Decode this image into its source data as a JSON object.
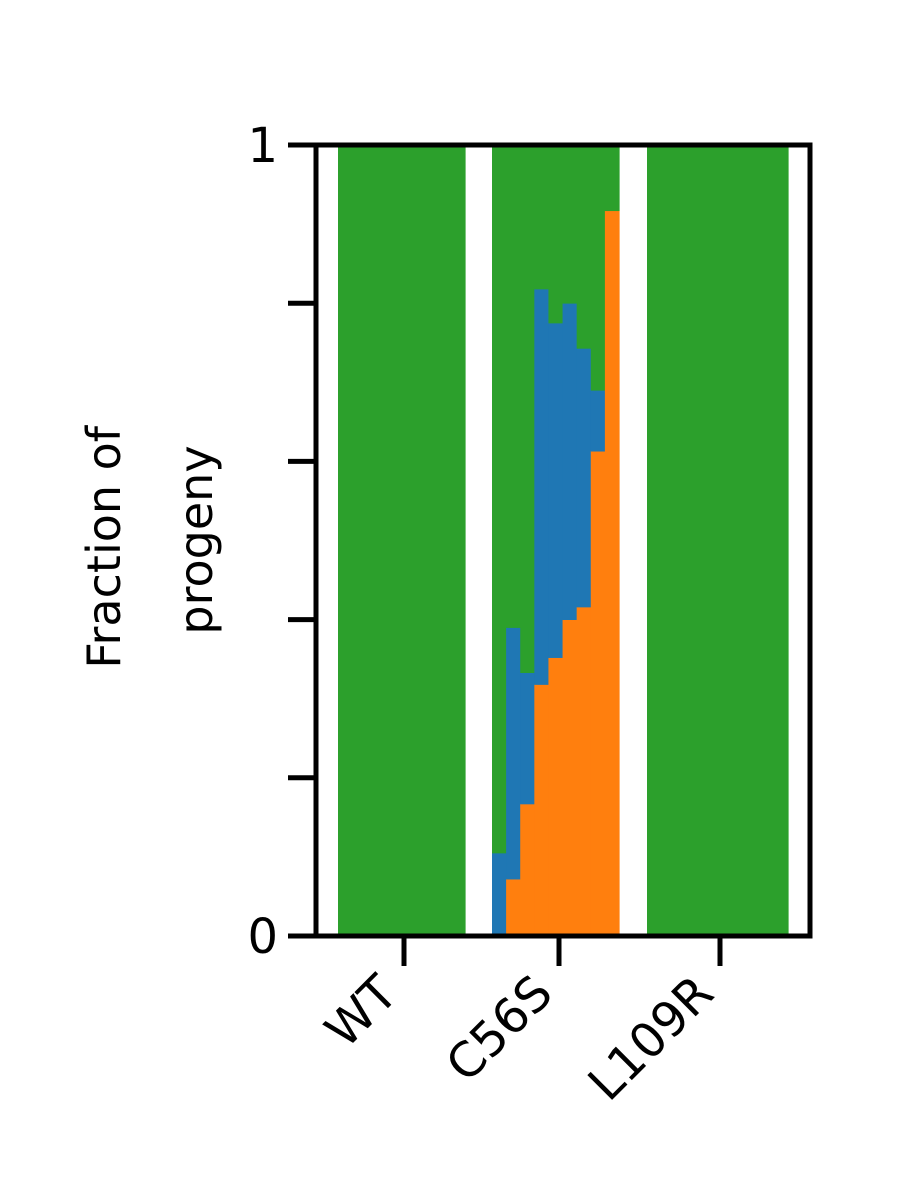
{
  "chart_data": {
    "type": "bar",
    "stacked": true,
    "ylabel": [
      "Fraction of",
      "progeny"
    ],
    "ylim": [
      0,
      1
    ],
    "yticks": [
      0,
      0.2,
      0.4,
      0.6,
      0.8,
      1
    ],
    "ytick_labels": {
      "0": "0",
      "1": "1"
    },
    "groups": [
      {
        "name": "WT",
        "bars": [
          {
            "orange": 0,
            "blue": 0,
            "green": 1
          },
          {
            "orange": 0,
            "blue": 0,
            "green": 1
          },
          {
            "orange": 0,
            "blue": 0,
            "green": 1
          },
          {
            "orange": 0,
            "blue": 0,
            "green": 1
          },
          {
            "orange": 0,
            "blue": 0,
            "green": 1
          },
          {
            "orange": 0,
            "blue": 0,
            "green": 1
          },
          {
            "orange": 0,
            "blue": 0,
            "green": 1
          },
          {
            "orange": 0,
            "blue": 0,
            "green": 1
          },
          {
            "orange": 0,
            "blue": 0,
            "green": 1
          }
        ]
      },
      {
        "name": "C56S",
        "bars": [
          {
            "orange": 0.0,
            "blue": 0.105,
            "green": 0.895
          },
          {
            "orange": 0.072,
            "blue": 0.318,
            "green": 0.61
          },
          {
            "orange": 0.167,
            "blue": 0.166,
            "green": 0.667
          },
          {
            "orange": 0.318,
            "blue": 0.5,
            "green": 0.182
          },
          {
            "orange": 0.352,
            "blue": 0.423,
            "green": 0.225
          },
          {
            "orange": 0.4,
            "blue": 0.4,
            "green": 0.2
          },
          {
            "orange": 0.416,
            "blue": 0.327,
            "green": 0.257
          },
          {
            "orange": 0.613,
            "blue": 0.077,
            "green": 0.31
          },
          {
            "orange": 0.917,
            "blue": 0.0,
            "green": 0.083
          }
        ]
      },
      {
        "name": "L109R",
        "bars": [
          {
            "orange": 0,
            "blue": 0,
            "green": 1
          },
          {
            "orange": 0,
            "blue": 0,
            "green": 1
          },
          {
            "orange": 0,
            "blue": 0,
            "green": 1
          },
          {
            "orange": 0,
            "blue": 0,
            "green": 1
          },
          {
            "orange": 0,
            "blue": 0,
            "green": 1
          },
          {
            "orange": 0,
            "blue": 0,
            "green": 1
          },
          {
            "orange": 0,
            "blue": 0,
            "green": 1
          },
          {
            "orange": 0,
            "blue": 0,
            "green": 1
          },
          {
            "orange": 0,
            "blue": 0,
            "green": 1
          },
          {
            "orange": 0,
            "blue": 0,
            "green": 1
          }
        ]
      }
    ],
    "colors": {
      "orange": "#ff7f0e",
      "blue": "#1f77b4",
      "green": "#2ca02c"
    }
  }
}
